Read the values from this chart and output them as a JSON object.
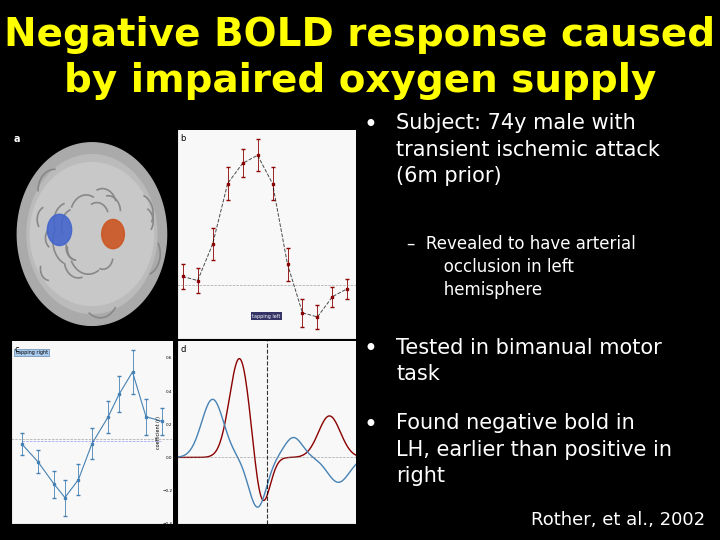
{
  "background_color": "#000000",
  "title_line1": "Negative BOLD response caused",
  "title_line2": "by impaired oxygen supply",
  "title_color": "#ffff00",
  "title_fontsize": 28,
  "bullet_color": "#ffffff",
  "bullet_fontsize": 15,
  "sub_bullet_fontsize": 12,
  "citation": "Rother, et al., 2002",
  "citation_color": "#ffffff",
  "citation_fontsize": 13
}
